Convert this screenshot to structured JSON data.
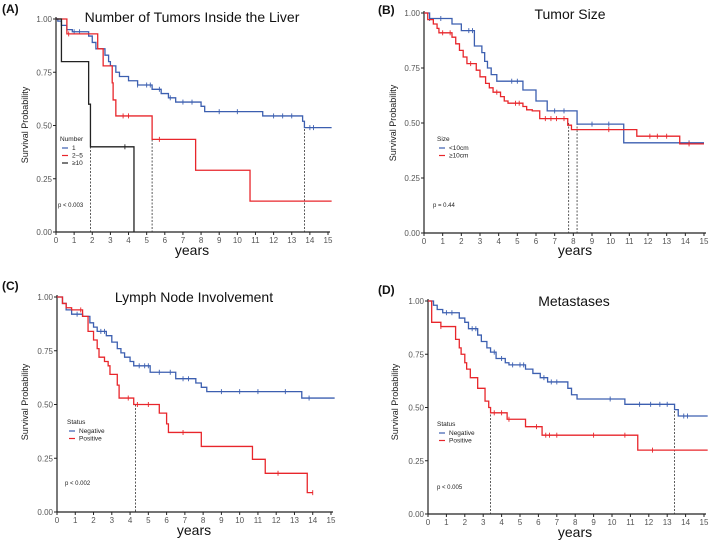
{
  "chart_data": [
    {
      "type": "line",
      "panel_tag": "(A)",
      "title": "Number of Tumors Inside the Liver",
      "xlabel": "years",
      "ylabel": "Survival Probability",
      "xlim": [
        0,
        15
      ],
      "ylim": [
        0,
        1
      ],
      "x_ticks": [
        "0",
        "1",
        "2",
        "3",
        "4",
        "5",
        "6",
        "7",
        "8",
        "9",
        "10",
        "11",
        "12",
        "13",
        "14",
        "15"
      ],
      "y_ticks": [
        "0.00",
        "0.25",
        "0.50",
        "0.75",
        "1.00"
      ],
      "legend_title": "Number",
      "p_value": "p < 0.003",
      "median_lines": [
        1.9,
        5.3,
        13.7
      ],
      "series": [
        {
          "name": "1",
          "color": "#3c5fb0",
          "steps": [
            [
              0,
              1
            ],
            [
              0.1,
              0.99
            ],
            [
              0.3,
              0.97
            ],
            [
              0.6,
              0.95
            ],
            [
              0.9,
              0.94
            ],
            [
              1.8,
              0.92
            ],
            [
              2.0,
              0.89
            ],
            [
              2.2,
              0.86
            ],
            [
              2.7,
              0.83
            ],
            [
              2.9,
              0.8
            ],
            [
              3.0,
              0.78
            ],
            [
              3.3,
              0.75
            ],
            [
              3.5,
              0.73
            ],
            [
              4.0,
              0.71
            ],
            [
              4.5,
              0.69
            ],
            [
              5.3,
              0.67
            ],
            [
              5.8,
              0.65
            ],
            [
              6.2,
              0.63
            ],
            [
              6.6,
              0.61
            ],
            [
              8.0,
              0.59
            ],
            [
              8.2,
              0.565
            ],
            [
              11.4,
              0.545
            ],
            [
              13.6,
              0.52
            ],
            [
              13.7,
              0.49
            ],
            [
              15.2,
              0.49
            ]
          ],
          "censored": [
            1.0,
            1.3,
            4.5,
            5.0,
            5.2,
            5.7,
            6.3,
            7.0,
            7.5,
            9.0,
            10.0,
            12.0,
            12.5,
            13.0,
            14.0,
            14.2
          ]
        },
        {
          "name": "2–5",
          "color": "#e8262b",
          "steps": [
            [
              0,
              1
            ],
            [
              0.6,
              0.93
            ],
            [
              2.3,
              0.86
            ],
            [
              2.6,
              0.78
            ],
            [
              3.1,
              0.7
            ],
            [
              3.15,
              0.62
            ],
            [
              3.3,
              0.545
            ],
            [
              5.3,
              0.435
            ],
            [
              7.7,
              0.29
            ],
            [
              10.7,
              0.145
            ],
            [
              15.2,
              0.145
            ]
          ],
          "censored": [
            0.7,
            3.7,
            4.0,
            5.7
          ]
        },
        {
          "name": "≥10",
          "color": "#222222",
          "steps": [
            [
              0,
              1
            ],
            [
              0.3,
              0.8
            ],
            [
              1.8,
              0.6
            ],
            [
              1.9,
              0.4
            ],
            [
              4.3,
              0.0
            ]
          ],
          "censored": [
            3.8
          ]
        }
      ]
    },
    {
      "type": "line",
      "panel_tag": "(B)",
      "title": "Tumor Size",
      "xlabel": "years",
      "ylabel": "Survival Probability",
      "xlim": [
        0,
        15
      ],
      "ylim": [
        0,
        1
      ],
      "x_ticks": [
        "0",
        "1",
        "2",
        "3",
        "4",
        "5",
        "6",
        "7",
        "8",
        "9",
        "10",
        "11",
        "12",
        "13",
        "14",
        "15"
      ],
      "y_ticks": [
        "0.00",
        "0.25",
        "0.50",
        "0.75",
        "1.00"
      ],
      "legend_title": "Size",
      "p_value": "p = 0.44",
      "median_lines": [
        7.75,
        8.2
      ],
      "series": [
        {
          "name": "<10cm",
          "color": "#3c5fb0",
          "steps": [
            [
              0,
              1
            ],
            [
              0.3,
              0.975
            ],
            [
              1.5,
              0.95
            ],
            [
              2.0,
              0.92
            ],
            [
              2.7,
              0.85
            ],
            [
              3.1,
              0.82
            ],
            [
              3.25,
              0.78
            ],
            [
              3.4,
              0.75
            ],
            [
              3.6,
              0.72
            ],
            [
              3.9,
              0.69
            ],
            [
              5.3,
              0.65
            ],
            [
              6.0,
              0.6
            ],
            [
              6.6,
              0.555
            ],
            [
              8.2,
              0.495
            ],
            [
              10.7,
              0.41
            ],
            [
              15,
              0.41
            ]
          ],
          "censored": [
            0.3,
            0.9,
            2.4,
            2.6,
            4.7,
            5.0,
            7.0,
            7.5,
            9.0,
            9.9,
            14.2
          ]
        },
        {
          "name": "≥10cm",
          "color": "#e8262b",
          "steps": [
            [
              0,
              1
            ],
            [
              0.2,
              0.97
            ],
            [
              0.5,
              0.95
            ],
            [
              0.7,
              0.93
            ],
            [
              0.8,
              0.91
            ],
            [
              1.5,
              0.89
            ],
            [
              1.7,
              0.86
            ],
            [
              1.9,
              0.83
            ],
            [
              2.1,
              0.8
            ],
            [
              2.3,
              0.77
            ],
            [
              2.8,
              0.74
            ],
            [
              3.0,
              0.71
            ],
            [
              3.3,
              0.68
            ],
            [
              3.5,
              0.66
            ],
            [
              3.7,
              0.64
            ],
            [
              4.1,
              0.62
            ],
            [
              4.3,
              0.6
            ],
            [
              4.5,
              0.59
            ],
            [
              5.3,
              0.575
            ],
            [
              5.5,
              0.56
            ],
            [
              5.8,
              0.555
            ],
            [
              6.2,
              0.52
            ],
            [
              7.7,
              0.49
            ],
            [
              7.9,
              0.47
            ],
            [
              11.4,
              0.44
            ],
            [
              13.7,
              0.405
            ],
            [
              15,
              0.405
            ]
          ],
          "censored": [
            1.0,
            1.4,
            2.5,
            3.9,
            4.9,
            5.1,
            6.5,
            6.8,
            7.1,
            7.5,
            9.9,
            12.1,
            12.5,
            13.0,
            14.2
          ]
        }
      ]
    },
    {
      "type": "line",
      "panel_tag": "(C)",
      "title": "Lymph Node Involvement",
      "xlabel": "years",
      "ylabel": "Survival Probability",
      "xlim": [
        0,
        15
      ],
      "ylim": [
        0,
        1
      ],
      "x_ticks": [
        "0",
        "1",
        "2",
        "3",
        "4",
        "5",
        "6",
        "7",
        "8",
        "9",
        "10",
        "11",
        "12",
        "13",
        "14",
        "15"
      ],
      "y_ticks": [
        "0.00",
        "0.25",
        "0.50",
        "0.75",
        "1.00"
      ],
      "legend_title": "Status",
      "p_value": "p < 0.002",
      "median_lines": [
        4.3
      ],
      "series": [
        {
          "name": "Negative",
          "color": "#3c5fb0",
          "steps": [
            [
              0,
              1
            ],
            [
              0.3,
              0.97
            ],
            [
              0.5,
              0.94
            ],
            [
              0.8,
              0.92
            ],
            [
              1.4,
              0.91
            ],
            [
              1.8,
              0.88
            ],
            [
              2.0,
              0.86
            ],
            [
              2.2,
              0.84
            ],
            [
              2.7,
              0.82
            ],
            [
              3.0,
              0.79
            ],
            [
              3.3,
              0.76
            ],
            [
              3.5,
              0.74
            ],
            [
              3.7,
              0.72
            ],
            [
              4.0,
              0.7
            ],
            [
              4.2,
              0.68
            ],
            [
              5.1,
              0.65
            ],
            [
              6.5,
              0.62
            ],
            [
              7.6,
              0.6
            ],
            [
              7.9,
              0.58
            ],
            [
              8.2,
              0.56
            ],
            [
              13.4,
              0.53
            ],
            [
              15.2,
              0.53
            ]
          ],
          "censored": [
            1.1,
            2.4,
            2.6,
            4.5,
            4.8,
            5.0,
            5.6,
            6.2,
            6.9,
            7.2,
            9.0,
            10.0,
            11.0,
            12.5,
            13.8
          ]
        },
        {
          "name": "Positive",
          "color": "#e8262b",
          "steps": [
            [
              0,
              1
            ],
            [
              0.3,
              0.97
            ],
            [
              0.5,
              0.95
            ],
            [
              0.8,
              0.94
            ],
            [
              1.4,
              0.91
            ],
            [
              1.7,
              0.84
            ],
            [
              2.0,
              0.8
            ],
            [
              2.2,
              0.76
            ],
            [
              2.3,
              0.72
            ],
            [
              2.6,
              0.7
            ],
            [
              2.8,
              0.68
            ],
            [
              2.9,
              0.64
            ],
            [
              3.3,
              0.59
            ],
            [
              3.4,
              0.53
            ],
            [
              4.2,
              0.5
            ],
            [
              5.6,
              0.46
            ],
            [
              6.0,
              0.41
            ],
            [
              6.1,
              0.37
            ],
            [
              7.9,
              0.305
            ],
            [
              10.7,
              0.245
            ],
            [
              11.4,
              0.18
            ],
            [
              13.7,
              0.09
            ],
            [
              14.0,
              0.09
            ]
          ],
          "censored": [
            1.3,
            3.9,
            4.4,
            5.0,
            6.9,
            12.1,
            14.0
          ]
        }
      ]
    },
    {
      "type": "line",
      "panel_tag": "(D)",
      "title": "Metastases",
      "xlabel": "years",
      "ylabel": "Survival Probability",
      "xlim": [
        0,
        15
      ],
      "ylim": [
        0,
        1
      ],
      "x_ticks": [
        "0",
        "1",
        "2",
        "3",
        "4",
        "5",
        "6",
        "7",
        "8",
        "9",
        "10",
        "11",
        "12",
        "13",
        "14",
        "15"
      ],
      "y_ticks": [
        "0.00",
        "0.25",
        "0.50",
        "0.75",
        "1.00"
      ],
      "legend_title": "Status",
      "p_value": "p < 0.005",
      "median_lines": [
        3.4,
        13.4
      ],
      "series": [
        {
          "name": "Negative",
          "color": "#3c5fb0",
          "steps": [
            [
              0,
              1
            ],
            [
              0.3,
              0.98
            ],
            [
              0.5,
              0.96
            ],
            [
              0.8,
              0.945
            ],
            [
              1.7,
              0.92
            ],
            [
              2.0,
              0.9
            ],
            [
              2.2,
              0.87
            ],
            [
              2.7,
              0.84
            ],
            [
              2.9,
              0.81
            ],
            [
              3.2,
              0.78
            ],
            [
              3.4,
              0.76
            ],
            [
              3.7,
              0.73
            ],
            [
              4.2,
              0.71
            ],
            [
              4.4,
              0.7
            ],
            [
              5.3,
              0.68
            ],
            [
              5.7,
              0.66
            ],
            [
              6.1,
              0.64
            ],
            [
              6.5,
              0.62
            ],
            [
              7.6,
              0.59
            ],
            [
              7.8,
              0.56
            ],
            [
              8.1,
              0.54
            ],
            [
              10.7,
              0.515
            ],
            [
              13.4,
              0.49
            ],
            [
              13.6,
              0.46
            ],
            [
              15.2,
              0.46
            ]
          ],
          "censored": [
            1.0,
            1.3,
            2.4,
            2.6,
            3.6,
            4.0,
            4.6,
            5.0,
            5.2,
            6.3,
            6.7,
            7.0,
            9.9,
            11.5,
            12.1,
            12.6,
            13.0,
            13.9,
            14.1
          ]
        },
        {
          "name": "Positive",
          "color": "#e8262b",
          "steps": [
            [
              0,
              1
            ],
            [
              0.2,
              0.9
            ],
            [
              0.7,
              0.88
            ],
            [
              1.5,
              0.82
            ],
            [
              1.7,
              0.78
            ],
            [
              1.8,
              0.75
            ],
            [
              2.0,
              0.71
            ],
            [
              2.1,
              0.68
            ],
            [
              2.3,
              0.64
            ],
            [
              2.7,
              0.59
            ],
            [
              3.1,
              0.53
            ],
            [
              3.3,
              0.5
            ],
            [
              3.4,
              0.475
            ],
            [
              4.3,
              0.445
            ],
            [
              5.3,
              0.41
            ],
            [
              6.2,
              0.37
            ],
            [
              11.4,
              0.3
            ],
            [
              15.2,
              0.3
            ]
          ],
          "censored": [
            0.7,
            3.6,
            4.0,
            4.4,
            5.9,
            6.4,
            6.6,
            7.0,
            9.0,
            10.7,
            12.2
          ]
        }
      ]
    }
  ]
}
